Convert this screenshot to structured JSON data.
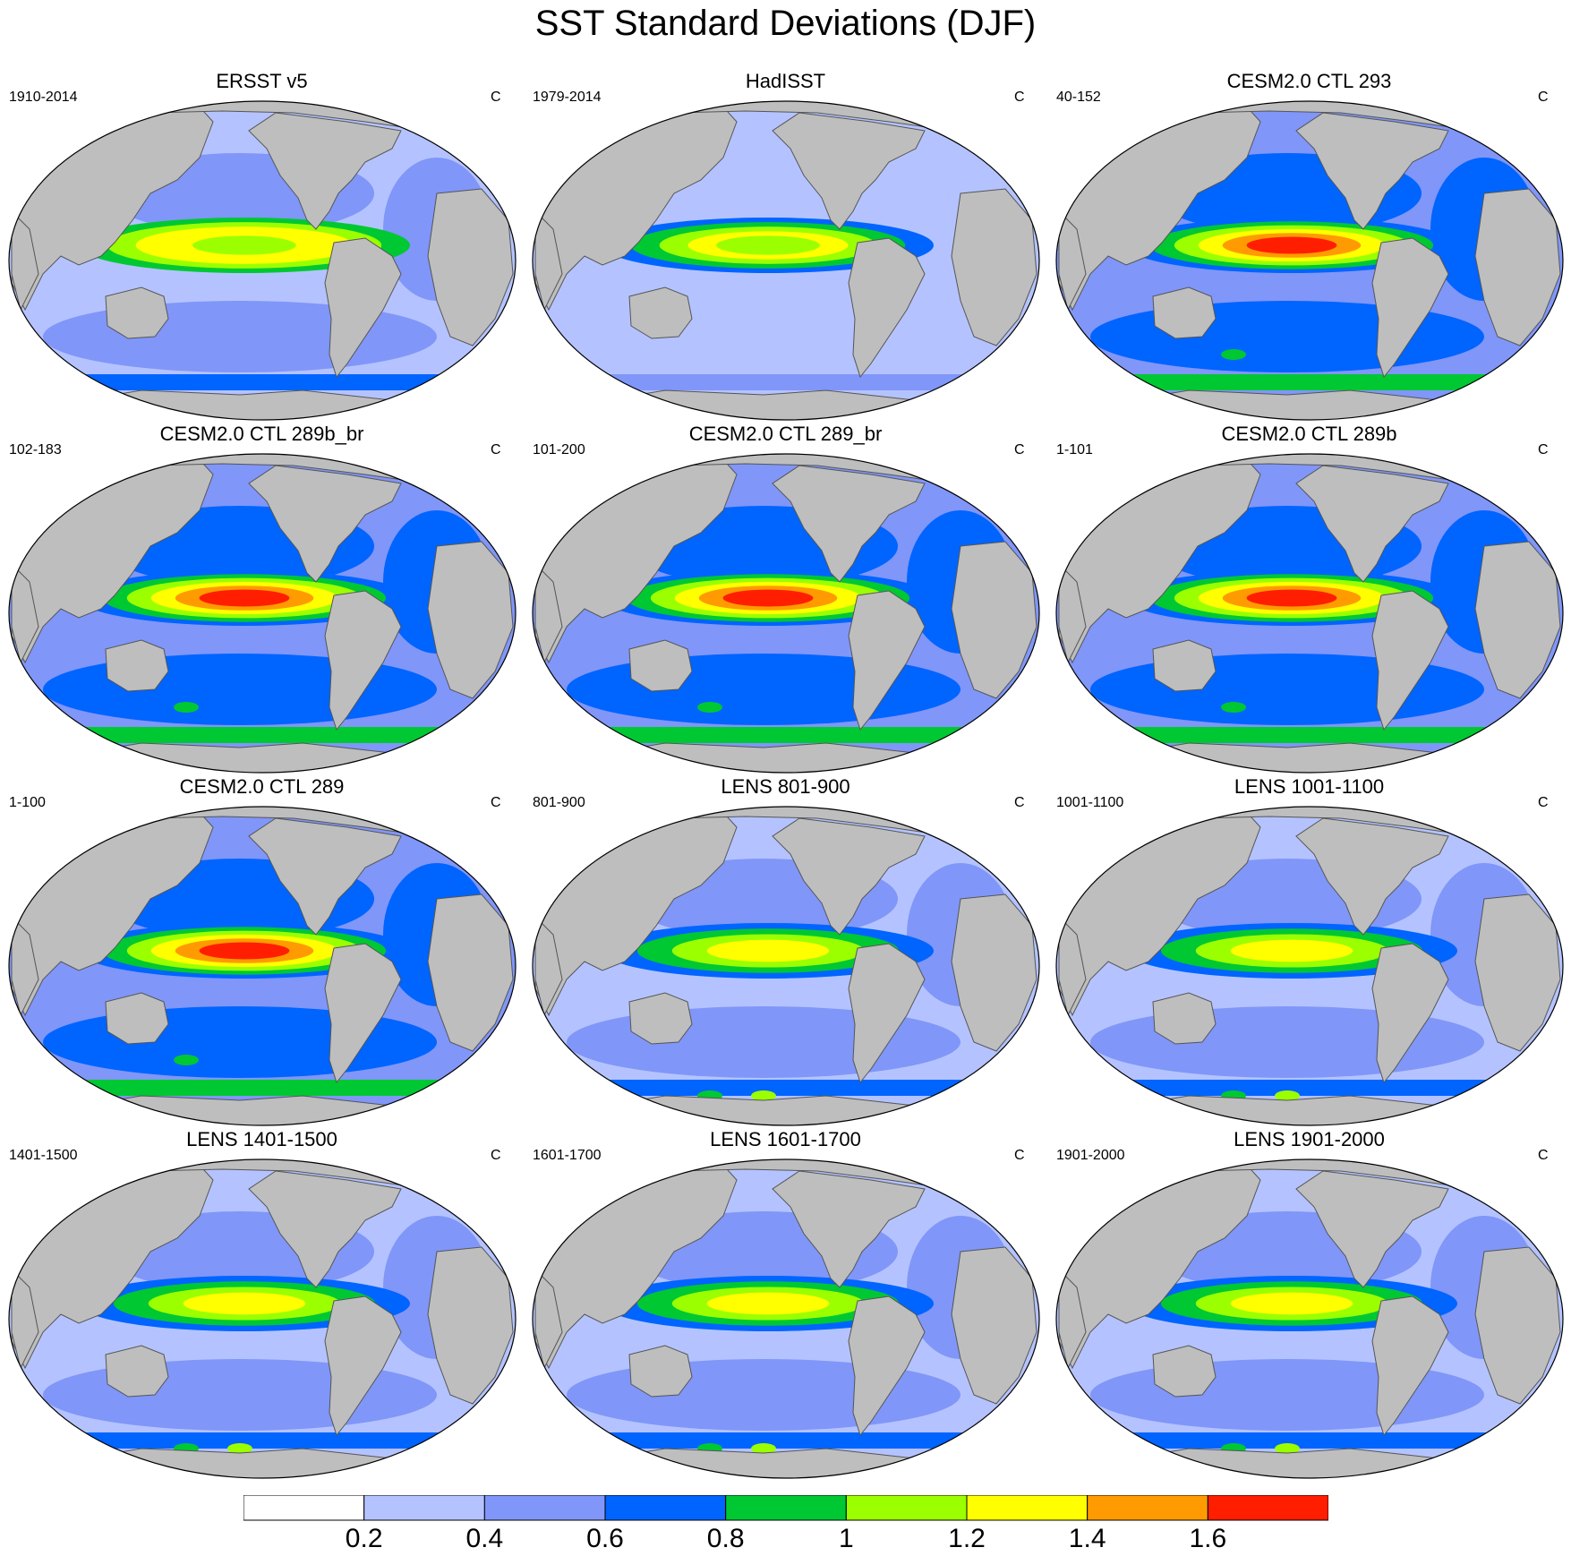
{
  "title": "SST Standard Deviations (DJF)",
  "units": "C",
  "panels": [
    {
      "title": "ERSST v5",
      "period": "1910-2014",
      "style": "obs-ersst"
    },
    {
      "title": "HadISST",
      "period": "1979-2014",
      "style": "obs-hadisst"
    },
    {
      "title": "CESM2.0 CTL 293",
      "period": "40-152",
      "style": "model-strong"
    },
    {
      "title": "CESM2.0 CTL 289b_br",
      "period": "102-183",
      "style": "model-strong"
    },
    {
      "title": "CESM2.0 CTL 289_br",
      "period": "101-200",
      "style": "model-strong"
    },
    {
      "title": "CESM2.0 CTL 289b",
      "period": "1-101",
      "style": "model-strong"
    },
    {
      "title": "CESM2.0 CTL 289",
      "period": "1-100",
      "style": "model-strong"
    },
    {
      "title": "LENS 801-900",
      "period": "801-900",
      "style": "lens"
    },
    {
      "title": "LENS 1001-1100",
      "period": "1001-1100",
      "style": "lens"
    },
    {
      "title": "LENS 1401-1500",
      "period": "1401-1500",
      "style": "lens"
    },
    {
      "title": "LENS 1601-1700",
      "period": "1601-1700",
      "style": "lens"
    },
    {
      "title": "LENS 1901-2000",
      "period": "1901-2000",
      "style": "lens"
    }
  ],
  "colorbar": {
    "colors": [
      "#ffffff",
      "#b4c3ff",
      "#8096f8",
      "#0064ff",
      "#00c832",
      "#9bff00",
      "#ffff00",
      "#ff9b00",
      "#ff1e00"
    ],
    "labels": [
      "0.2",
      "0.4",
      "0.6",
      "0.8",
      "1",
      "1.2",
      "1.4",
      "1.6"
    ]
  },
  "colors": {
    "land": "#bebebe",
    "coast": "#555555"
  }
}
